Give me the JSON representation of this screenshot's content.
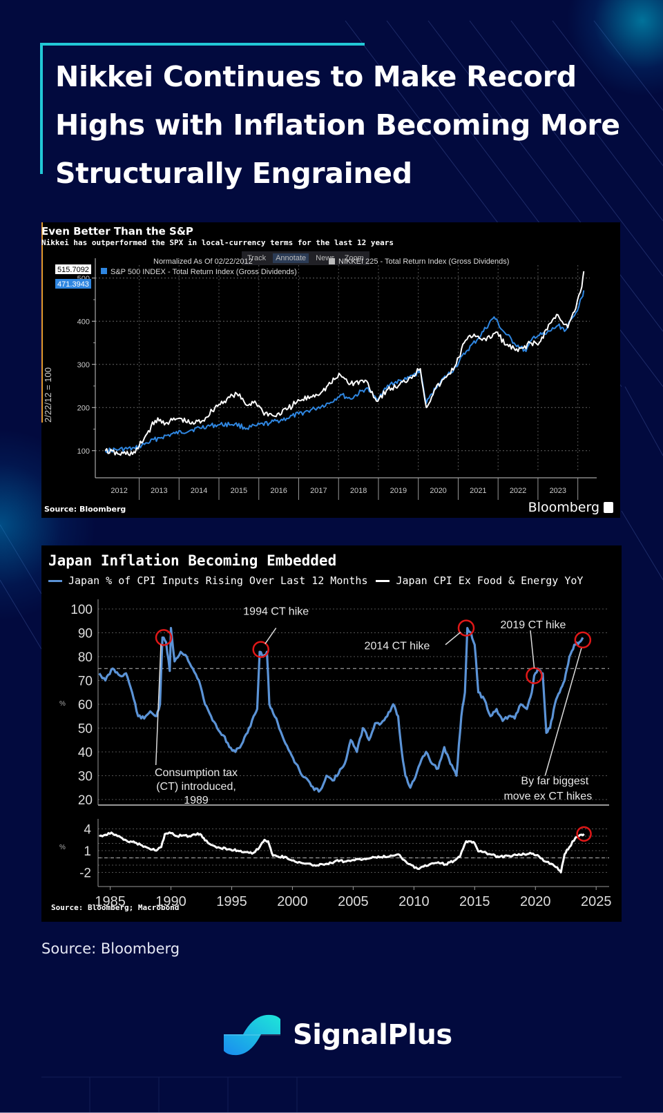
{
  "header": {
    "title_lines": [
      "Nikkei Continues to Make Record",
      "Highs with Inflation Becoming More",
      "Structurally Engrained"
    ]
  },
  "footer": {
    "source": "Source: Bloomberg",
    "brand": "SignalPlus"
  },
  "colors": {
    "background": "#020a3e",
    "accent": "#22c8d6",
    "nikkei_line": "#ffffff",
    "spx_line": "#2f86e0",
    "cpi_inputs_line": "#5b93d6",
    "annotation_circle": "#e01818"
  },
  "chart1_ui": {
    "toolbar": [
      "Track",
      "Annotate",
      "News",
      "Zoom"
    ],
    "normalized_label": "Normalized As Of 02/22/2012",
    "source": "Source: Bloomberg",
    "brand": "Bloomberg",
    "last_value_nikkei": "515.7092",
    "last_value_spx": "471.3943"
  },
  "chart_data": [
    {
      "type": "line",
      "title": "Even Better Than the S&P",
      "subtitle": "Nikkei has outperformed the SPX in local-currency terms for the last 12 years",
      "xlabel": "",
      "ylabel": "2/22/12 = 100",
      "ylim": [
        50,
        530
      ],
      "yticks": [
        100,
        200,
        300,
        400,
        500
      ],
      "categories": [
        "2012",
        "2013",
        "2014",
        "2015",
        "2016",
        "2017",
        "2018",
        "2019",
        "2020",
        "2021",
        "2022",
        "2023"
      ],
      "grid": true,
      "legend_position": "top-left",
      "series": [
        {
          "name": "NIKKEI 225 - Total Return Index (Gross Dividends)",
          "color": "#ffffff",
          "last_value": 515.7092,
          "x": [
            2012.15,
            2012.5,
            2012.9,
            2013.2,
            2013.4,
            2013.7,
            2014.0,
            2014.3,
            2014.6,
            2014.9,
            2015.2,
            2015.45,
            2015.7,
            2015.9,
            2016.1,
            2016.4,
            2016.7,
            2016.95,
            2017.3,
            2017.6,
            2017.9,
            2018.05,
            2018.3,
            2018.7,
            2018.95,
            2019.2,
            2019.5,
            2019.8,
            2020.05,
            2020.2,
            2020.4,
            2020.7,
            2020.95,
            2021.15,
            2021.4,
            2021.7,
            2021.95,
            2022.2,
            2022.5,
            2022.8,
            2023.0,
            2023.3,
            2023.5,
            2023.75,
            2023.95,
            2024.1,
            2024.15
          ],
          "values": [
            100,
            92,
            95,
            140,
            170,
            165,
            175,
            162,
            170,
            200,
            220,
            232,
            205,
            215,
            190,
            180,
            195,
            212,
            225,
            238,
            265,
            275,
            255,
            262,
            215,
            240,
            250,
            270,
            290,
            200,
            240,
            270,
            300,
            350,
            370,
            355,
            375,
            345,
            330,
            350,
            345,
            395,
            415,
            385,
            430,
            480,
            515.7
          ]
        },
        {
          "name": "S&P 500 INDEX - Total Return Index (Gross Dividends)",
          "color": "#2f86e0",
          "last_value": 471.3943,
          "x": [
            2012.15,
            2012.5,
            2012.9,
            2013.2,
            2013.5,
            2013.9,
            2014.3,
            2014.7,
            2015.0,
            2015.4,
            2015.7,
            2015.95,
            2016.3,
            2016.7,
            2017.0,
            2017.4,
            2017.8,
            2018.05,
            2018.3,
            2018.7,
            2018.95,
            2019.3,
            2019.7,
            2020.05,
            2020.2,
            2020.5,
            2020.9,
            2021.2,
            2021.5,
            2021.9,
            2022.1,
            2022.4,
            2022.7,
            2022.9,
            2023.2,
            2023.5,
            2023.7,
            2023.95,
            2024.1,
            2024.15
          ],
          "values": [
            100,
            103,
            105,
            118,
            130,
            140,
            148,
            157,
            160,
            162,
            152,
            158,
            165,
            175,
            185,
            197,
            212,
            230,
            220,
            245,
            220,
            255,
            265,
            285,
            210,
            255,
            290,
            330,
            360,
            410,
            380,
            350,
            330,
            365,
            370,
            390,
            380,
            420,
            455,
            471.4
          ]
        }
      ]
    },
    {
      "type": "line",
      "title": "Japan Inflation Becoming Embedded",
      "xlabel": "",
      "ylabel": "%",
      "xlim": [
        1984,
        2025.5
      ],
      "xticks": [
        1985,
        1990,
        1995,
        2000,
        2005,
        2010,
        2015,
        2020,
        2025
      ],
      "grid": true,
      "legend_position": "top-left",
      "panels": [
        {
          "name": "upper",
          "ylim": [
            20,
            100
          ],
          "yticks": [
            20,
            30,
            40,
            50,
            60,
            70,
            80,
            90,
            100
          ],
          "reference_line": 75,
          "series": [
            {
              "name": "Japan % of CPI Inputs Rising Over Last 12 Months",
              "color": "#5b93d6",
              "x": [
                1984.1,
                1984.6,
                1985.2,
                1985.8,
                1986.3,
                1986.8,
                1987.3,
                1987.8,
                1988.3,
                1988.8,
                1989.1,
                1989.3,
                1989.6,
                1989.9,
                1990.0,
                1990.3,
                1990.8,
                1991.3,
                1991.8,
                1992.3,
                1992.8,
                1993.3,
                1993.8,
                1994.3,
                1994.8,
                1995.3,
                1995.8,
                1996.3,
                1996.8,
                1997.1,
                1997.3,
                1997.6,
                1997.9,
                1998.1,
                1998.3,
                1998.8,
                1999.3,
                1999.8,
                2000.3,
                2000.8,
                2001.3,
                2001.8,
                2002.3,
                2002.8,
                2003.3,
                2003.8,
                2004.3,
                2004.8,
                2005.3,
                2005.8,
                2006.3,
                2006.8,
                2007.3,
                2007.8,
                2008.3,
                2008.7,
                2009.0,
                2009.3,
                2009.7,
                2010.0,
                2010.5,
                2011.0,
                2011.5,
                2012.0,
                2012.5,
                2013.0,
                2013.5,
                2013.9,
                2014.2,
                2014.4,
                2014.7,
                2015.0,
                2015.3,
                2015.8,
                2016.3,
                2016.8,
                2017.3,
                2017.8,
                2018.3,
                2018.8,
                2019.3,
                2019.7,
                2019.9,
                2020.2,
                2020.6,
                2020.9,
                2021.2,
                2021.6,
                2022.0,
                2022.4,
                2022.8,
                2023.2,
                2023.6,
                2023.9
              ],
              "values": [
                73,
                70,
                75,
                72,
                73,
                65,
                55,
                54,
                57,
                55,
                60,
                88,
                86,
                74,
                92,
                78,
                82,
                80,
                75,
                70,
                60,
                55,
                50,
                47,
                42,
                40,
                43,
                48,
                55,
                58,
                82,
                80,
                82,
                60,
                58,
                52,
                45,
                40,
                35,
                30,
                28,
                24,
                24,
                30,
                28,
                31,
                35,
                45,
                40,
                50,
                45,
                52,
                52,
                55,
                60,
                55,
                40,
                30,
                25,
                28,
                35,
                40,
                35,
                33,
                42,
                35,
                30,
                55,
                65,
                92,
                90,
                85,
                65,
                62,
                55,
                58,
                53,
                55,
                54,
                60,
                58,
                65,
                72,
                75,
                73,
                48,
                50,
                60,
                65,
                70,
                80,
                85,
                86,
                88
              ]
            }
          ],
          "annotations": [
            {
              "text": "Consumption tax (CT) introduced, 1989",
              "x": 1989.4,
              "y": 88
            },
            {
              "text": "1994 CT hike",
              "x": 1997.4,
              "y": 83
            },
            {
              "text": "2014 CT hike",
              "x": 2014.3,
              "y": 92
            },
            {
              "text": "2019 CT hike",
              "x": 2019.9,
              "y": 72
            },
            {
              "text": "By far biggest move ex CT hikes",
              "x": 2023.9,
              "y": 87
            }
          ]
        },
        {
          "name": "lower",
          "ylim": [
            -3,
            5
          ],
          "yticks": [
            -2,
            1,
            4
          ],
          "reference_line": 0,
          "series": [
            {
              "name": "Japan CPI Ex Food & Energy YoY",
              "color": "#ffffff",
              "x": [
                1984.1,
                1984.6,
                1985.1,
                1985.6,
                1986.1,
                1986.8,
                1987.5,
                1988.2,
                1988.8,
                1989.2,
                1989.5,
                1990.0,
                1990.5,
                1991.0,
                1991.5,
                1992.0,
                1992.4,
                1992.8,
                1993.3,
                1994.0,
                1994.8,
                1995.5,
                1996.2,
                1996.8,
                1997.3,
                1997.7,
                1998.0,
                1998.4,
                1998.8,
                1999.5,
                2000.2,
                2001.0,
                2001.8,
                2002.5,
                2003.2,
                2003.7,
                2004.3,
                2005.0,
                2005.8,
                2006.5,
                2007.3,
                2008.2,
                2008.7,
                2009.2,
                2009.8,
                2010.3,
                2010.8,
                2011.4,
                2012.0,
                2012.6,
                2013.3,
                2013.8,
                2014.3,
                2014.5,
                2014.9,
                2015.3,
                2015.7,
                2016.3,
                2017.0,
                2017.7,
                2018.4,
                2019.1,
                2019.8,
                2020.3,
                2020.8,
                2021.3,
                2021.8,
                2022.1,
                2022.4,
                2022.8,
                2023.3,
                2023.8,
                2024.0
              ],
              "values": [
                3.0,
                3.2,
                3.5,
                3.0,
                2.5,
                2.2,
                1.8,
                1.3,
                1.0,
                1.5,
                3.3,
                3.4,
                3.0,
                3.1,
                3.0,
                3.2,
                3.3,
                2.4,
                1.8,
                1.4,
                1.2,
                1.0,
                0.8,
                0.7,
                1.5,
                2.5,
                2.3,
                0.3,
                0.2,
                0.1,
                -0.5,
                -0.8,
                -1.0,
                -0.9,
                -0.7,
                -0.3,
                -0.5,
                -0.3,
                -0.2,
                0.0,
                0.1,
                0.3,
                0.5,
                -0.3,
                -1.0,
                -1.5,
                -1.2,
                -0.8,
                -0.6,
                -0.9,
                -0.4,
                0.2,
                2.3,
                2.3,
                2.2,
                0.9,
                0.8,
                0.5,
                0.1,
                0.3,
                0.4,
                0.5,
                0.6,
                0.2,
                -0.5,
                -0.8,
                -1.3,
                -2.0,
                0.5,
                1.5,
                2.8,
                3.2,
                3.3
              ]
            }
          ],
          "annotations": [
            {
              "text": "",
              "x": 2024.0,
              "y": 3.3
            }
          ]
        }
      ],
      "source": "Source: Bloomberg; Macrobond"
    }
  ]
}
